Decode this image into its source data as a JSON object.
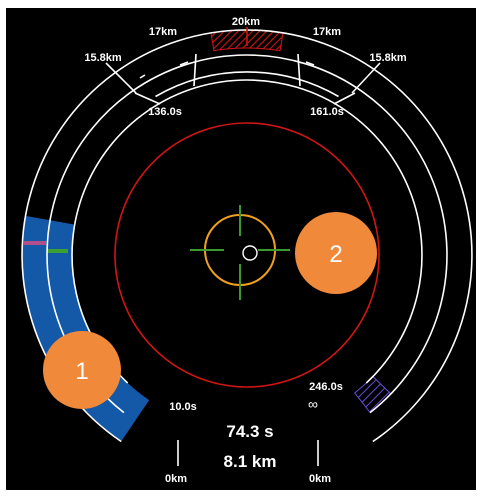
{
  "readout": {
    "time": "74.3 s",
    "distance": "8.1 km"
  },
  "range_labels": {
    "top": "20km",
    "upper_left": "17km",
    "upper_right": "17km",
    "mid_left": "15.8km",
    "mid_right": "15.8km",
    "bottom_left": "0km",
    "bottom_right": "0km",
    "infinity": "∞"
  },
  "time_labels": {
    "upper_left": "136.0s",
    "upper_right": "161.0s",
    "lower_left": "10.0s",
    "lower_right": "246.0s"
  },
  "badges": {
    "left": "1",
    "right": "2"
  },
  "colors": {
    "background": "#000000",
    "ring": "#ffffff",
    "target_ring": "#d01515",
    "reticle": "#f0a020",
    "crosshair": "#3a9a30",
    "progress_fill": "#1458a8",
    "badge": "#f0893a",
    "hatch_red": "#d01515",
    "hatch_purple": "#6a4bd8"
  },
  "progress": {
    "left_arc_fill_fraction": 0.55
  }
}
